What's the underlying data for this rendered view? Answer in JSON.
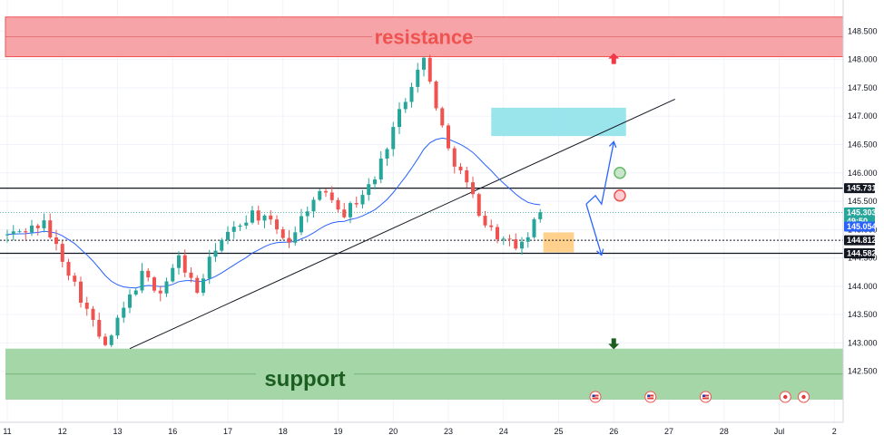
{
  "chart_data": {
    "type": "candlestick",
    "x_axis": {
      "tick_labels": [
        "11",
        "12",
        "13",
        "16",
        "17",
        "18",
        "19",
        "20",
        "23",
        "24",
        "25",
        "26",
        "27",
        "28",
        "Jul",
        "2"
      ]
    },
    "y_axis": {
      "range": [
        141.6,
        149.05
      ],
      "tick_labels": [
        "142.500",
        "143.000",
        "143.500",
        "144.000",
        "144.500",
        "145.000",
        "145.500",
        "146.000",
        "146.500",
        "147.000",
        "147.500",
        "148.000",
        "148.500"
      ]
    },
    "zones": {
      "resistance": {
        "label": "resistance",
        "low": 148.05,
        "high": 148.75,
        "color": "#f7a4a8"
      },
      "support": {
        "label": "support",
        "low": 142.0,
        "high": 142.9,
        "color": "#a5d6a7"
      },
      "supply_box": {
        "low": 146.65,
        "high": 147.15,
        "color": "#8fe2ea"
      },
      "demand_box": {
        "low": 144.6,
        "high": 144.95,
        "color": "#ffcc80"
      }
    },
    "price_levels": [
      {
        "value": 145.731,
        "label": "145.731",
        "style": "solid",
        "badge_color": "#131722"
      },
      {
        "value": 144.812,
        "label": "144.812",
        "style": "dotted",
        "badge_color": "#131722"
      },
      {
        "value": 144.582,
        "label": "144.582",
        "style": "solid",
        "badge_color": "#131722"
      }
    ],
    "current_price": {
      "value": 145.303,
      "label": "145.303",
      "countdown": "49:50",
      "color": "#26a69a"
    },
    "moving_average": {
      "value": 145.054,
      "label": "145.054",
      "color": "#2962ff"
    },
    "bull_color": "#26a69a",
    "bear_color": "#ef5350",
    "path": [
      [
        0,
        144.9
      ],
      [
        6,
        145.1
      ],
      [
        9,
        144.5
      ],
      [
        12,
        143.8
      ],
      [
        16,
        142.9
      ],
      [
        19,
        143.6
      ],
      [
        22,
        144.2
      ],
      [
        25,
        143.9
      ],
      [
        28,
        144.5
      ],
      [
        31,
        143.9
      ],
      [
        34,
        144.7
      ],
      [
        37,
        145.0
      ],
      [
        40,
        145.3
      ],
      [
        43,
        145.1
      ],
      [
        46,
        144.8
      ],
      [
        49,
        145.4
      ],
      [
        52,
        145.7
      ],
      [
        55,
        145.3
      ],
      [
        57,
        145.5
      ],
      [
        60,
        145.9
      ],
      [
        63,
        146.8
      ],
      [
        66,
        147.6
      ],
      [
        68,
        148.0
      ],
      [
        70,
        147.2
      ],
      [
        72,
        146.4
      ],
      [
        75,
        145.8
      ],
      [
        78,
        145.1
      ],
      [
        81,
        144.8
      ],
      [
        84,
        144.7
      ],
      [
        87,
        145.3
      ]
    ],
    "x_ticks": [
      {
        "label": "11",
        "bar": 0
      },
      {
        "label": "12",
        "bar": 9
      },
      {
        "label": "13",
        "bar": 18
      },
      {
        "label": "16",
        "bar": 27
      },
      {
        "label": "17",
        "bar": 36
      },
      {
        "label": "18",
        "bar": 45
      },
      {
        "label": "19",
        "bar": 54
      },
      {
        "label": "20",
        "bar": 63
      },
      {
        "label": "23",
        "bar": 72
      },
      {
        "label": "24",
        "bar": 81
      },
      {
        "label": "25",
        "bar": 90
      },
      {
        "label": "26",
        "bar": 99
      },
      {
        "label": "27",
        "bar": 108
      },
      {
        "label": "28",
        "bar": 117
      },
      {
        "label": "Jul",
        "bar": 126
      },
      {
        "label": "2",
        "bar": 135
      }
    ],
    "trendline": {
      "from": [
        20,
        142.9
      ],
      "to": [
        109,
        147.3
      ]
    },
    "annotations": {
      "projection_path": [
        [
          94.5,
          145.45
        ],
        [
          96,
          145.6
        ],
        [
          97,
          145.45
        ],
        [
          99,
          146.55
        ]
      ],
      "alt_path": [
        [
          94.5,
          145.45
        ],
        [
          97,
          144.55
        ]
      ],
      "markers": [
        {
          "kind": "circle",
          "bar": 100,
          "value": 146.0,
          "color": "#66bb6a"
        },
        {
          "kind": "circle",
          "bar": 100,
          "value": 145.6,
          "color": "#ef5350"
        },
        {
          "kind": "arrow-up",
          "bar": 99,
          "value": 148.0,
          "color": "#f23645"
        },
        {
          "kind": "arrow-down",
          "bar": 99,
          "value": 143.0,
          "color": "#1b5e20"
        }
      ],
      "event_icons": [
        {
          "kind": "us-flag",
          "bar": 96
        },
        {
          "kind": "us-flag",
          "bar": 105
        },
        {
          "kind": "us-flag",
          "bar": 114
        },
        {
          "kind": "event-dot",
          "bar": 127
        },
        {
          "kind": "event-dot",
          "bar": 130
        }
      ]
    }
  }
}
